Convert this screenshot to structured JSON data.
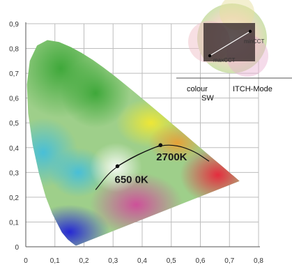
{
  "chart_data": {
    "type": "scatter",
    "subtype": "cie-1931-chromaticity-diagram",
    "xlim": [
      0,
      0.8
    ],
    "ylim": [
      0,
      0.9
    ],
    "x_ticks": [
      "0",
      "0,1",
      "0,2",
      "0,3",
      "0,4",
      "0,5",
      "0,6",
      "0,7",
      "0,8"
    ],
    "y_ticks": [
      "0",
      "0,1",
      "0,2",
      "0,3",
      "0,4",
      "0,5",
      "0,6",
      "0,7",
      "0,8",
      "0,9"
    ],
    "grid": true,
    "points": [
      {
        "label": "650 0K",
        "x": 0.315,
        "y": 0.325
      },
      {
        "label": "2700K",
        "x": 0.463,
        "y": 0.41
      }
    ],
    "curves": [
      {
        "x": [
          0.24,
          0.28,
          0.315,
          0.36,
          0.41,
          0.463,
          0.52,
          0.58,
          0.63
        ],
        "y": [
          0.23,
          0.29,
          0.325,
          0.355,
          0.385,
          0.41,
          0.41,
          0.385,
          0.345
        ]
      },
      {
        "x": [
          0.315,
          0.36,
          0.41,
          0.463
        ],
        "y": [
          0.325,
          0.357,
          0.385,
          0.41
        ]
      }
    ]
  },
  "inset": {
    "labels": {
      "min": "minCCT",
      "max": "maxCCT"
    },
    "mode_labels": {
      "colour": "colour",
      "sw": "SW",
      "itch": "ITCH-Mode"
    }
  }
}
